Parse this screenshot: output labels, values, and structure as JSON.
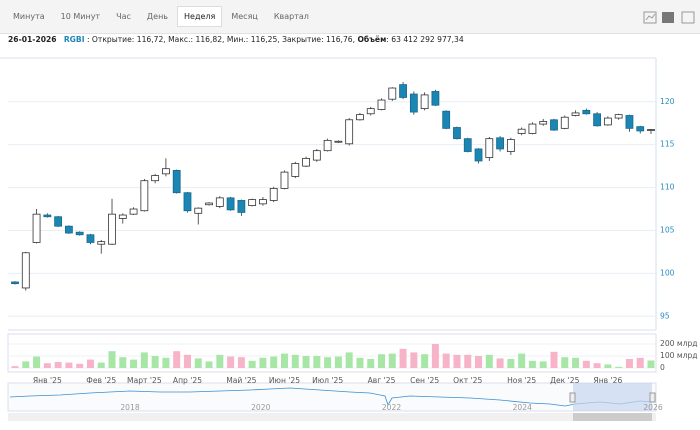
{
  "toolbar": {
    "tabs": [
      "Минута",
      "10 Минут",
      "Час",
      "День",
      "Неделя",
      "Месяц",
      "Квартал"
    ]
  },
  "info": {
    "date": "26-01-2026",
    "ticker": "RGBI",
    "ohlc_text": ": Открытие: 116,72, Макс.: 116,82, Мин.: 116,25, Закрытие: 116,76,",
    "volume_label": "Объём",
    "volume_text": ": 63 412 292 977,34"
  },
  "chart_data": {
    "type": "candlestick",
    "categories": [
      null,
      null,
      null,
      "Янв '25",
      null,
      null,
      null,
      null,
      "Фев '25",
      null,
      null,
      null,
      "Март '25",
      null,
      null,
      null,
      "Апр '25",
      null,
      null,
      null,
      null,
      "Май '25",
      null,
      null,
      null,
      "Июн '25",
      null,
      null,
      null,
      "Июл '25",
      null,
      null,
      null,
      null,
      "Авг '25",
      null,
      null,
      null,
      "Сен '25",
      null,
      null,
      null,
      "Окт '25",
      null,
      null,
      null,
      null,
      "Ноя '25",
      null,
      null,
      null,
      "Дек '25",
      null,
      null,
      null,
      "Янв '26",
      null,
      null,
      null,
      null
    ],
    "open": [
      99.0,
      98.3,
      103.6,
      106.8,
      106.6,
      105.5,
      104.8,
      104.5,
      103.4,
      103.4,
      106.4,
      106.9,
      107.3,
      110.8,
      111.6,
      112.0,
      109.4,
      107.0,
      108.0,
      107.8,
      108.8,
      108.5,
      107.9,
      108.1,
      108.5,
      109.9,
      111.3,
      112.5,
      113.2,
      114.3,
      115.3,
      115.1,
      117.9,
      118.6,
      119.1,
      120.3,
      122.0,
      120.9,
      119.2,
      121.2,
      118.9,
      117.0,
      115.7,
      114.5,
      113.5,
      115.8,
      114.2,
      116.3,
      116.3,
      117.4,
      117.9,
      116.9,
      118.4,
      119.0,
      118.6,
      117.3,
      118.1,
      118.4,
      117.1,
      116.72
    ],
    "high": [
      99.1,
      102.5,
      107.5,
      107.0,
      106.7,
      105.6,
      104.9,
      104.6,
      103.9,
      108.7,
      107.0,
      107.7,
      111.0,
      111.6,
      113.4,
      112.1,
      109.5,
      107.7,
      108.3,
      109.0,
      108.9,
      108.6,
      108.7,
      108.9,
      110.1,
      112.0,
      113.0,
      113.6,
      114.5,
      115.7,
      115.5,
      118.1,
      118.7,
      119.4,
      120.4,
      121.7,
      122.3,
      121.2,
      121.1,
      121.4,
      119.0,
      117.1,
      115.8,
      114.6,
      115.9,
      116.0,
      115.8,
      117.0,
      117.6,
      118.0,
      118.0,
      118.4,
      119.0,
      119.2,
      118.8,
      118.3,
      118.6,
      118.5,
      117.2,
      116.82
    ],
    "low": [
      98.7,
      98.0,
      103.5,
      106.5,
      105.4,
      104.6,
      104.4,
      103.4,
      102.3,
      103.3,
      105.8,
      106.8,
      107.2,
      110.5,
      111.3,
      109.3,
      107.1,
      105.7,
      107.9,
      107.6,
      107.3,
      106.7,
      107.8,
      107.9,
      108.3,
      109.8,
      111.1,
      112.4,
      113.0,
      114.2,
      115.2,
      114.9,
      117.8,
      118.4,
      119.0,
      120.1,
      120.3,
      118.5,
      119.0,
      119.5,
      116.8,
      115.6,
      114.1,
      112.8,
      113.1,
      114.2,
      113.8,
      116.1,
      116.2,
      117.2,
      116.6,
      116.8,
      118.3,
      118.5,
      117.1,
      117.2,
      117.9,
      116.5,
      116.3,
      116.25
    ],
    "close": [
      98.8,
      102.4,
      106.9,
      106.6,
      105.5,
      104.7,
      104.5,
      103.6,
      103.7,
      106.9,
      106.8,
      107.5,
      110.8,
      111.4,
      112.2,
      109.4,
      107.3,
      107.6,
      108.2,
      108.8,
      107.4,
      107.1,
      108.6,
      108.6,
      109.9,
      111.8,
      112.8,
      113.4,
      114.3,
      115.5,
      115.4,
      117.9,
      118.5,
      119.2,
      120.2,
      121.6,
      120.5,
      118.8,
      120.8,
      119.6,
      116.9,
      115.7,
      114.2,
      113.1,
      115.7,
      114.5,
      115.6,
      116.8,
      117.4,
      117.7,
      116.7,
      118.2,
      118.7,
      118.6,
      117.2,
      118.1,
      118.5,
      116.9,
      116.6,
      116.76
    ],
    "volume": [
      15,
      55,
      95,
      40,
      50,
      45,
      35,
      70,
      45,
      140,
      90,
      70,
      130,
      100,
      85,
      140,
      110,
      80,
      55,
      110,
      95,
      90,
      60,
      85,
      95,
      120,
      110,
      100,
      100,
      90,
      95,
      130,
      85,
      75,
      115,
      120,
      160,
      130,
      115,
      200,
      120,
      110,
      110,
      100,
      110,
      80,
      75,
      120,
      60,
      55,
      135,
      90,
      85,
      60,
      40,
      30,
      10,
      75,
      85,
      63
    ],
    "up_color": "#ffffff",
    "down_color": "#1b86b3",
    "wick_color": "#333333",
    "volume_up_color": "#a8e6a8",
    "volume_down_color": "#f7b3c8",
    "ylim": [
      93.4,
      125.1
    ],
    "yticks": [
      95,
      100,
      105,
      110,
      115,
      120
    ],
    "volume_ylim": [
      0,
      250
    ],
    "volume_yticks": [
      0,
      {
        "value": 100,
        "label": "100 млрд"
      },
      {
        "value": 200,
        "label": "200 млрд"
      }
    ],
    "grid": true
  },
  "navigator": {
    "labels": [
      "2018",
      "2020",
      "2022",
      "2024",
      "2026"
    ]
  }
}
